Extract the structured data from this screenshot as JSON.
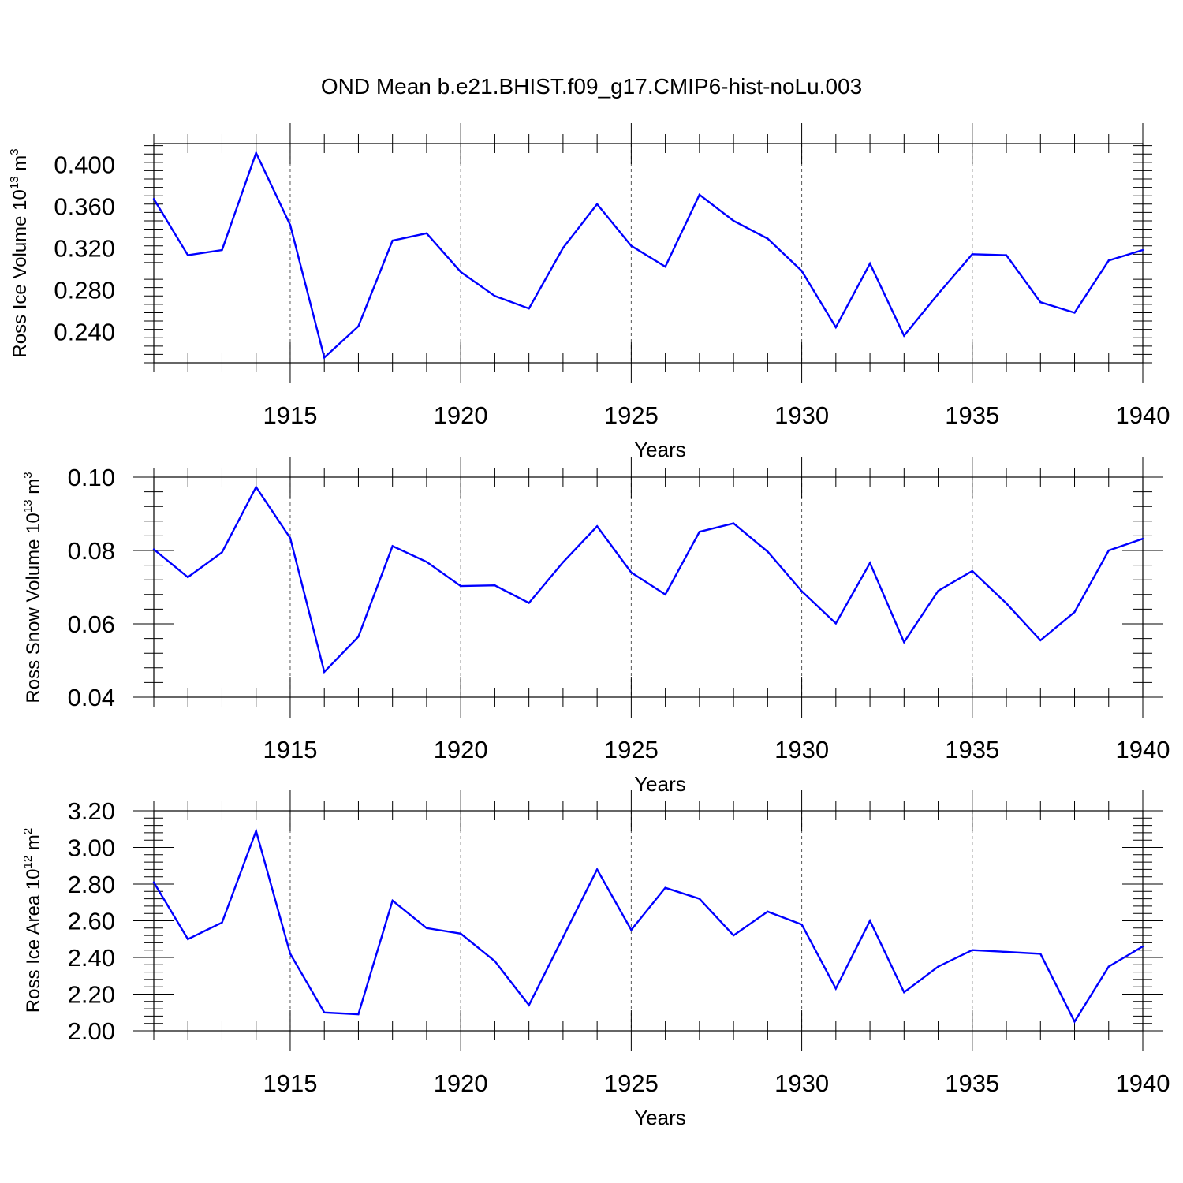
{
  "page_title": "OND Mean b.e21.BHIST.f09_g17.CMIP6-hist-noLu.003",
  "colors": {
    "line": "#0000ff",
    "axis": "#000000",
    "grid": "#555555"
  },
  "chart_data": [
    {
      "type": "line",
      "title": "OND Mean b.e21.BHIST.f09_g17.CMIP6-hist-noLu.003",
      "xlabel": "Years",
      "ylabel": {
        "prefix": "Ross Ice Volume 10",
        "exp": "13",
        "unit": " m",
        "unit_exp": "3"
      },
      "xlim": [
        1911,
        1940
      ],
      "ylim": [
        0.21,
        0.42
      ],
      "x_ticks": [
        1915,
        1920,
        1925,
        1930,
        1935,
        1940
      ],
      "y_ticks": [
        0.24,
        0.28,
        0.32,
        0.36,
        0.4
      ],
      "y_tick_labels": [
        "0.240",
        "0.280",
        "0.320",
        "0.360",
        "0.400"
      ],
      "x_minor_step": 1,
      "y_minor_step": 0.008,
      "grid": "vertical dashed at major x ticks",
      "x": [
        1911,
        1912,
        1913,
        1914,
        1915,
        1916,
        1917,
        1918,
        1919,
        1920,
        1921,
        1922,
        1923,
        1924,
        1925,
        1926,
        1927,
        1928,
        1929,
        1930,
        1931,
        1932,
        1933,
        1934,
        1935,
        1936,
        1937,
        1938,
        1939,
        1940
      ],
      "values": [
        0.367,
        0.313,
        0.318,
        0.411,
        0.342,
        0.215,
        0.245,
        0.327,
        0.334,
        0.297,
        0.274,
        0.262,
        0.32,
        0.362,
        0.322,
        0.302,
        0.371,
        0.346,
        0.329,
        0.298,
        0.244,
        0.305,
        0.236,
        0.276,
        0.314,
        0.313,
        0.268,
        0.258,
        0.308,
        0.318
      ]
    },
    {
      "type": "line",
      "xlabel": "Years",
      "ylabel": {
        "prefix": "Ross Snow Volume 10",
        "exp": "13",
        "unit": " m",
        "unit_exp": "3"
      },
      "xlim": [
        1911,
        1940
      ],
      "ylim": [
        0.04,
        0.1
      ],
      "x_ticks": [
        1915,
        1920,
        1925,
        1930,
        1935,
        1940
      ],
      "y_ticks": [
        0.04,
        0.06,
        0.08,
        0.1
      ],
      "y_tick_labels": [
        "0.04",
        "0.06",
        "0.08",
        "0.10"
      ],
      "x_minor_step": 1,
      "y_minor_step": 0.004,
      "grid": "vertical dashed at major x ticks",
      "x": [
        1911,
        1912,
        1913,
        1914,
        1915,
        1916,
        1917,
        1918,
        1919,
        1920,
        1921,
        1922,
        1923,
        1924,
        1925,
        1926,
        1927,
        1928,
        1929,
        1930,
        1931,
        1932,
        1933,
        1934,
        1935,
        1936,
        1937,
        1938,
        1939,
        1940
      ],
      "values": [
        0.0803,
        0.0727,
        0.0795,
        0.0973,
        0.0834,
        0.0469,
        0.0565,
        0.0812,
        0.0769,
        0.0703,
        0.0705,
        0.0657,
        0.0768,
        0.0866,
        0.074,
        0.068,
        0.0851,
        0.0874,
        0.0797,
        0.0689,
        0.0601,
        0.0766,
        0.055,
        0.069,
        0.0744,
        0.0656,
        0.0555,
        0.0632,
        0.08,
        0.0832
      ]
    },
    {
      "type": "line",
      "xlabel": "Years",
      "ylabel": {
        "prefix": "Ross Ice Area 10",
        "exp": "12",
        "unit": " m",
        "unit_exp": "2"
      },
      "xlim": [
        1911,
        1940
      ],
      "ylim": [
        2.0,
        3.2
      ],
      "x_ticks": [
        1915,
        1920,
        1925,
        1930,
        1935,
        1940
      ],
      "y_ticks": [
        2.0,
        2.2,
        2.4,
        2.6,
        2.8,
        3.0,
        3.2
      ],
      "y_tick_labels": [
        "2.00",
        "2.20",
        "2.40",
        "2.60",
        "2.80",
        "3.00",
        "3.20"
      ],
      "x_minor_step": 1,
      "y_minor_step": 0.04,
      "grid": "vertical dashed at major x ticks",
      "x": [
        1911,
        1912,
        1913,
        1914,
        1915,
        1916,
        1917,
        1918,
        1919,
        1920,
        1921,
        1922,
        1923,
        1924,
        1925,
        1926,
        1927,
        1928,
        1929,
        1930,
        1931,
        1932,
        1933,
        1934,
        1935,
        1936,
        1937,
        1938,
        1939,
        1940
      ],
      "values": [
        2.81,
        2.5,
        2.59,
        3.09,
        2.42,
        2.1,
        2.09,
        2.71,
        2.56,
        2.53,
        2.38,
        2.14,
        2.51,
        2.88,
        2.55,
        2.78,
        2.72,
        2.52,
        2.65,
        2.58,
        2.23,
        2.6,
        2.21,
        2.35,
        2.44,
        2.43,
        2.42,
        2.05,
        2.35,
        2.46
      ]
    }
  ]
}
